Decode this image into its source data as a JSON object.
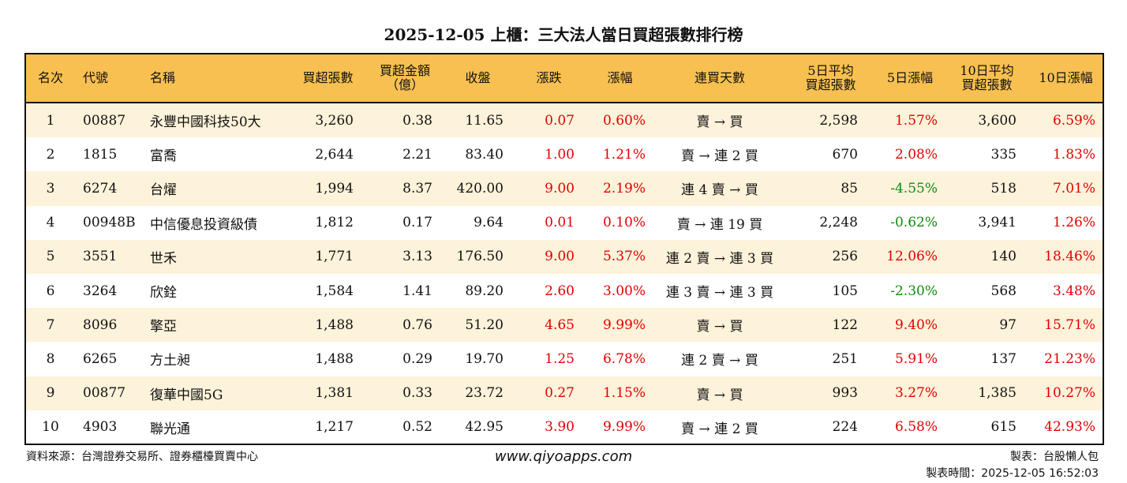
{
  "title": "2025-12-05 上櫃：三大法人當日買超張數排行榜",
  "columns": [
    "名次",
    "代號",
    "名稱",
    "買超張數",
    "買超金額\n（億）",
    "收盤",
    "漲跌",
    "漲幅",
    "連買天數",
    "5日平均\n買超張數",
    "5日漲幅",
    "10日平均\n買超張數",
    "10日漲幅"
  ],
  "rows": [
    [
      "1",
      "00887",
      "永豐中國科技50大",
      "3,260",
      "0.38",
      "11.65",
      "0.07",
      "0.60%",
      "賣 → 買",
      "2,598",
      "1.57%",
      "3,600",
      "6.59%"
    ],
    [
      "2",
      "1815",
      "富喬",
      "2,644",
      "2.21",
      "83.40",
      "1.00",
      "1.21%",
      "賣 → 連 2 買",
      "670",
      "2.08%",
      "335",
      "1.83%"
    ],
    [
      "3",
      "6274",
      "台燿",
      "1,994",
      "8.37",
      "420.00",
      "9.00",
      "2.19%",
      "連 4 賣 → 買",
      "85",
      "-4.55%",
      "518",
      "7.01%"
    ],
    [
      "4",
      "00948B",
      "中信優息投資級債",
      "1,812",
      "0.17",
      "9.64",
      "0.01",
      "0.10%",
      "賣 → 連 19 買",
      "2,248",
      "-0.62%",
      "3,941",
      "1.26%"
    ],
    [
      "5",
      "3551",
      "世禾",
      "1,771",
      "3.13",
      "176.50",
      "9.00",
      "5.37%",
      "連 2 賣 → 連 3 買",
      "256",
      "12.06%",
      "140",
      "18.46%"
    ],
    [
      "6",
      "3264",
      "欣銓",
      "1,584",
      "1.41",
      "89.20",
      "2.60",
      "3.00%",
      "連 3 賣 → 連 3 買",
      "105",
      "-2.30%",
      "568",
      "3.48%"
    ],
    [
      "7",
      "8096",
      "擎亞",
      "1,488",
      "0.76",
      "51.20",
      "4.65",
      "9.99%",
      "賣 → 買",
      "122",
      "9.40%",
      "97",
      "15.71%"
    ],
    [
      "8",
      "6265",
      "方土昶",
      "1,488",
      "0.29",
      "19.70",
      "1.25",
      "6.78%",
      "連 2 賣 → 買",
      "251",
      "5.91%",
      "137",
      "21.23%"
    ],
    [
      "9",
      "00877",
      "復華中國5G",
      "1,381",
      "0.33",
      "23.72",
      "0.27",
      "1.15%",
      "賣 → 買",
      "993",
      "3.27%",
      "1,385",
      "10.27%"
    ],
    [
      "10",
      "4903",
      "聯光通",
      "1,217",
      "0.52",
      "42.95",
      "3.90",
      "9.99%",
      "賣 → 連 2 買",
      "224",
      "6.58%",
      "615",
      "42.93%"
    ]
  ],
  "footer": {
    "source": "資料來源：台灣證券交易所、證券櫃檯買賣中心",
    "website": "www.qiyoapps.com",
    "maker": "製表：台股懶人包",
    "time": "製表時間：2025-12-05 16:52:03"
  },
  "colors": {
    "header": "#F8C050",
    "stripe": "#FDF2DA",
    "up": "#e00000",
    "down": "#108a10"
  }
}
